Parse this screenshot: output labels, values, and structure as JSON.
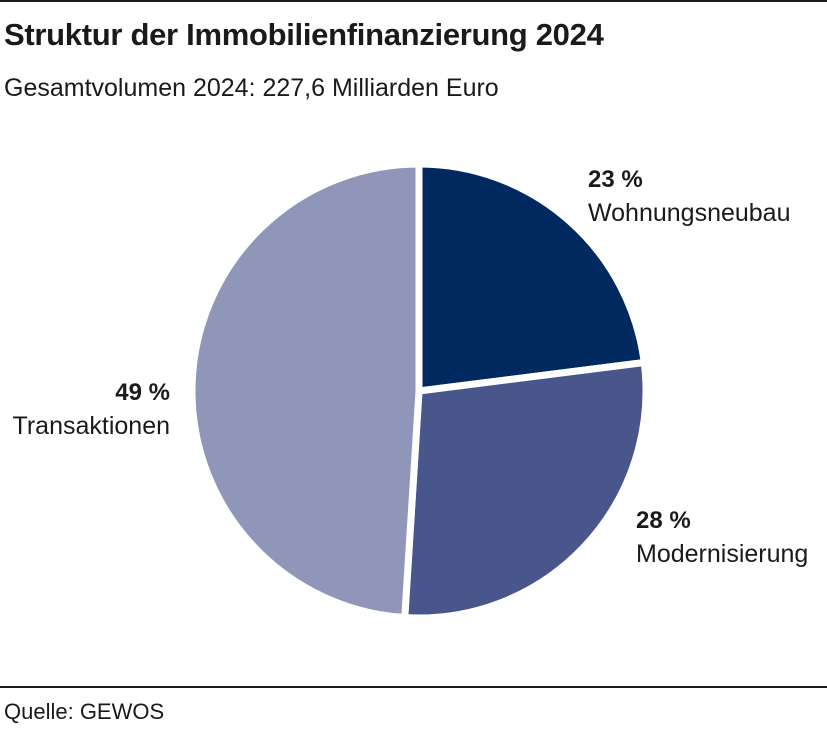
{
  "title": "Struktur der Immobilienfinanzierung 2024",
  "subtitle": "Gesamtvolumen 2024: 227,6 Milliarden Euro",
  "source": "Quelle: GEWOS",
  "chart_data": {
    "type": "pie",
    "title": "Struktur der Immobilienfinanzierung 2024",
    "subtitle": "Gesamtvolumen 2024: 227,6 Milliarden Euro",
    "slices": [
      {
        "label": "Wohnungsneubau",
        "value": 23,
        "value_label": "23 %",
        "color": "#002960"
      },
      {
        "label": "Modernisierung",
        "value": 28,
        "value_label": "28 %",
        "color": "#48568b"
      },
      {
        "label": "Transaktionen",
        "value": 49,
        "value_label": "49 %",
        "color": "#8f96ba"
      }
    ],
    "start": "12 o'clock, clockwise",
    "legend": "none (direct labels)",
    "unit": "%"
  }
}
